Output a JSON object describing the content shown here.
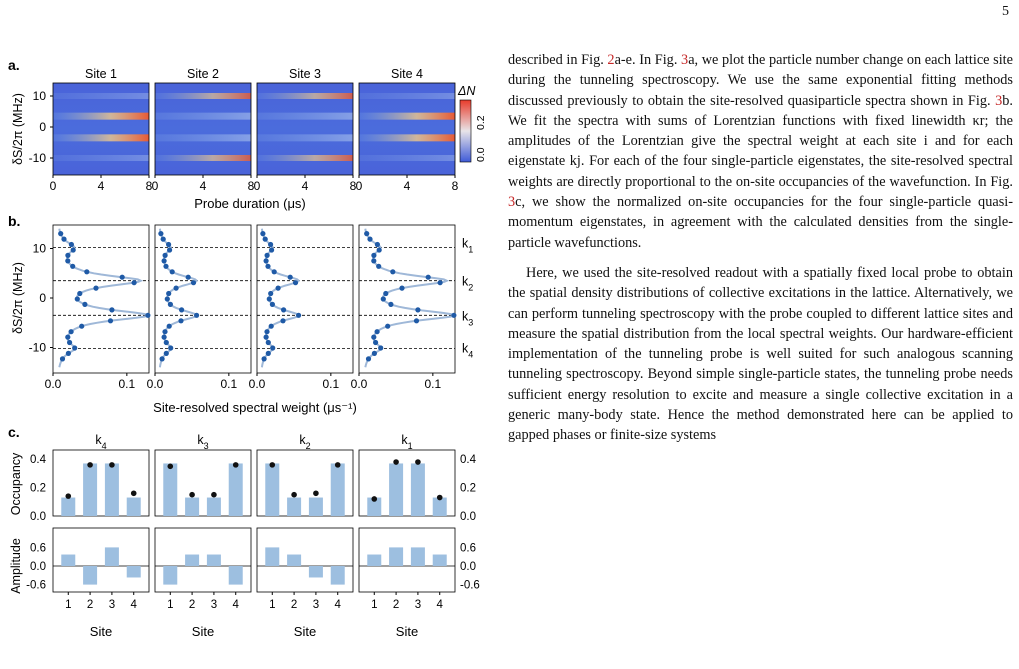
{
  "page": {
    "number": "5"
  },
  "figure": {
    "panel_a": {
      "label": "a.",
      "sites": [
        "Site 1",
        "Site 2",
        "Site 3",
        "Site 4"
      ],
      "y_axis_label": "δS/2π (MHz)",
      "y_ticks": [
        "10",
        "0",
        "-10"
      ],
      "x_ticks": [
        "0",
        "4",
        "8"
      ],
      "x_axis_label": "Probe duration (μs)",
      "colorbar": {
        "label": "ΔN",
        "ticks": [
          "0.0",
          "0.2"
        ],
        "colors": [
          "#3f5bd8",
          "#e83b2b"
        ]
      }
    },
    "panel_b": {
      "label": "b.",
      "y_axis_label": "δS/2π (MHz)",
      "y_ticks": [
        "10",
        "0",
        "-10"
      ],
      "x_ticks": [
        "0.0",
        "0.1"
      ],
      "x_axis_label": "Site-resolved spectral weight (μs⁻¹)",
      "state_labels": [
        "k1",
        "k2",
        "k3",
        "k4"
      ]
    },
    "panel_c": {
      "label": "c.",
      "state_titles": [
        "k4",
        "k3",
        "k2",
        "k1"
      ],
      "occupancy_label": "Occupancy",
      "amplitude_label": "Amplitude",
      "occ_ticks": [
        "0.0",
        "0.2",
        "0.4"
      ],
      "amp_ticks": [
        "-0.6",
        "0.0",
        "0.6"
      ],
      "site_ticks": [
        "1",
        "2",
        "3",
        "4"
      ],
      "x_axis_label": "Site"
    }
  },
  "chart_data": [
    {
      "type": "bar",
      "title": "k4",
      "categories": [
        "1",
        "2",
        "3",
        "4"
      ],
      "series": [
        {
          "name": "Occupancy",
          "values": [
            0.13,
            0.37,
            0.37,
            0.13
          ],
          "dots": [
            0.14,
            0.36,
            0.36,
            0.16
          ]
        },
        {
          "name": "Amplitude",
          "values": [
            0.37,
            -0.6,
            0.6,
            -0.37
          ]
        }
      ]
    },
    {
      "type": "bar",
      "title": "k3",
      "categories": [
        "1",
        "2",
        "3",
        "4"
      ],
      "series": [
        {
          "name": "Occupancy",
          "values": [
            0.37,
            0.13,
            0.13,
            0.37
          ],
          "dots": [
            0.35,
            0.15,
            0.15,
            0.36
          ]
        },
        {
          "name": "Amplitude",
          "values": [
            -0.6,
            0.37,
            0.37,
            -0.6
          ]
        }
      ]
    },
    {
      "type": "bar",
      "title": "k2",
      "categories": [
        "1",
        "2",
        "3",
        "4"
      ],
      "series": [
        {
          "name": "Occupancy",
          "values": [
            0.37,
            0.13,
            0.13,
            0.37
          ],
          "dots": [
            0.36,
            0.15,
            0.16,
            0.36
          ]
        },
        {
          "name": "Amplitude",
          "values": [
            0.6,
            0.37,
            -0.37,
            -0.6
          ]
        }
      ]
    },
    {
      "type": "bar",
      "title": "k1",
      "categories": [
        "1",
        "2",
        "3",
        "4"
      ],
      "series": [
        {
          "name": "Occupancy",
          "values": [
            0.13,
            0.37,
            0.37,
            0.13
          ],
          "dots": [
            0.12,
            0.38,
            0.38,
            0.13
          ]
        },
        {
          "name": "Amplitude",
          "values": [
            0.37,
            0.6,
            0.6,
            0.37
          ]
        }
      ]
    }
  ],
  "body": {
    "p1": [
      "described in Fig. ",
      "2",
      "a-e. In Fig. ",
      "3",
      "a, we plot the particle number change on each lattice site during the tunneling spectroscopy. We use the same exponential fitting methods discussed previously to obtain the site-resolved quasiparticle spectra shown in Fig. ",
      "3",
      "b. We fit the spectra with sums of Lorentzian functions with fixed linewidth κr; the amplitudes of the Lorentzian give the spectral weight at each site i and for each eigenstate kj. For each of the four single-particle eigenstates, the site-resolved spectral weights are directly proportional to the on-site occupancies of the wavefunction. In Fig. ",
      "3",
      "c, we show the normalized on-site occupancies for the four single-particle quasi-momentum eigenstates, in agreement with the calculated densities from the single-particle wavefunctions."
    ],
    "p2": "Here, we used the site-resolved readout with a spatially fixed local probe to obtain the spatial density distributions of collective excitations in the lattice. Alternatively, we can perform tunneling spectroscopy with the probe coupled to different lattice sites and measure the spatial distribution from the local spectral weights. Our hardware-efficient implementation of the tunneling probe is well suited for such analogous scanning tunneling spectroscopy. Beyond simple single-particle states, the tunneling probe needs sufficient energy resolution to excite and measure a single collective excitation in a generic many-body state. Hence the method demonstrated here can be applied to gapped phases or finite-size systems"
  }
}
